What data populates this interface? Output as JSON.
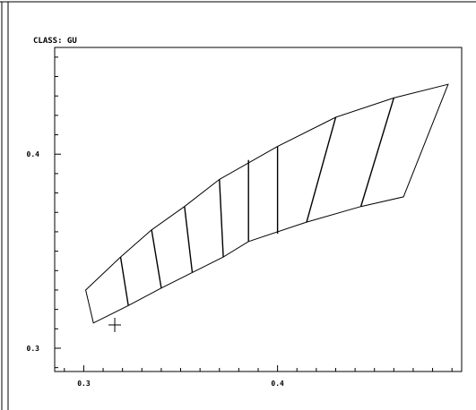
{
  "header": {
    "class_label": "CLASS: GU"
  },
  "colors": {
    "background": "#ffffff",
    "ink": "#000000"
  },
  "chart_data": {
    "type": "scatter",
    "title": "CLASS: GU",
    "xlabel": "",
    "ylabel": "",
    "x_ticks_labeled": [
      "0.3",
      "0.4"
    ],
    "y_ticks_labeled": [
      "0.3",
      "0.4"
    ],
    "xlim": [
      0.285,
      0.495
    ],
    "ylim": [
      0.288,
      0.455
    ],
    "grid": false,
    "legend": "none",
    "polygon_outline": {
      "upper_edge": [
        [
          0.301,
          0.33
        ],
        [
          0.319,
          0.347
        ],
        [
          0.335,
          0.361
        ],
        [
          0.352,
          0.373
        ],
        [
          0.37,
          0.387
        ],
        [
          0.4,
          0.404
        ],
        [
          0.43,
          0.419
        ],
        [
          0.46,
          0.429
        ],
        [
          0.488,
          0.436
        ]
      ],
      "lower_edge": [
        [
          0.305,
          0.313
        ],
        [
          0.323,
          0.322
        ],
        [
          0.34,
          0.331
        ],
        [
          0.356,
          0.339
        ],
        [
          0.372,
          0.347
        ],
        [
          0.385,
          0.355
        ],
        [
          0.415,
          0.365
        ],
        [
          0.443,
          0.373
        ],
        [
          0.465,
          0.378
        ]
      ]
    },
    "bin_dividers": [
      [
        [
          0.319,
          0.347
        ],
        [
          0.323,
          0.322
        ]
      ],
      [
        [
          0.335,
          0.361
        ],
        [
          0.34,
          0.331
        ]
      ],
      [
        [
          0.352,
          0.373
        ],
        [
          0.356,
          0.339
        ]
      ],
      [
        [
          0.37,
          0.387
        ],
        [
          0.372,
          0.347
        ]
      ],
      [
        [
          0.385,
          0.397
        ],
        [
          0.385,
          0.355
        ]
      ],
      [
        [
          0.4,
          0.404
        ],
        [
          0.4,
          0.359
        ]
      ],
      [
        [
          0.43,
          0.419
        ],
        [
          0.415,
          0.365
        ]
      ],
      [
        [
          0.46,
          0.429
        ],
        [
          0.443,
          0.373
        ]
      ]
    ],
    "marker": {
      "x": 0.316,
      "y": 0.312,
      "symbol": "plus"
    }
  }
}
